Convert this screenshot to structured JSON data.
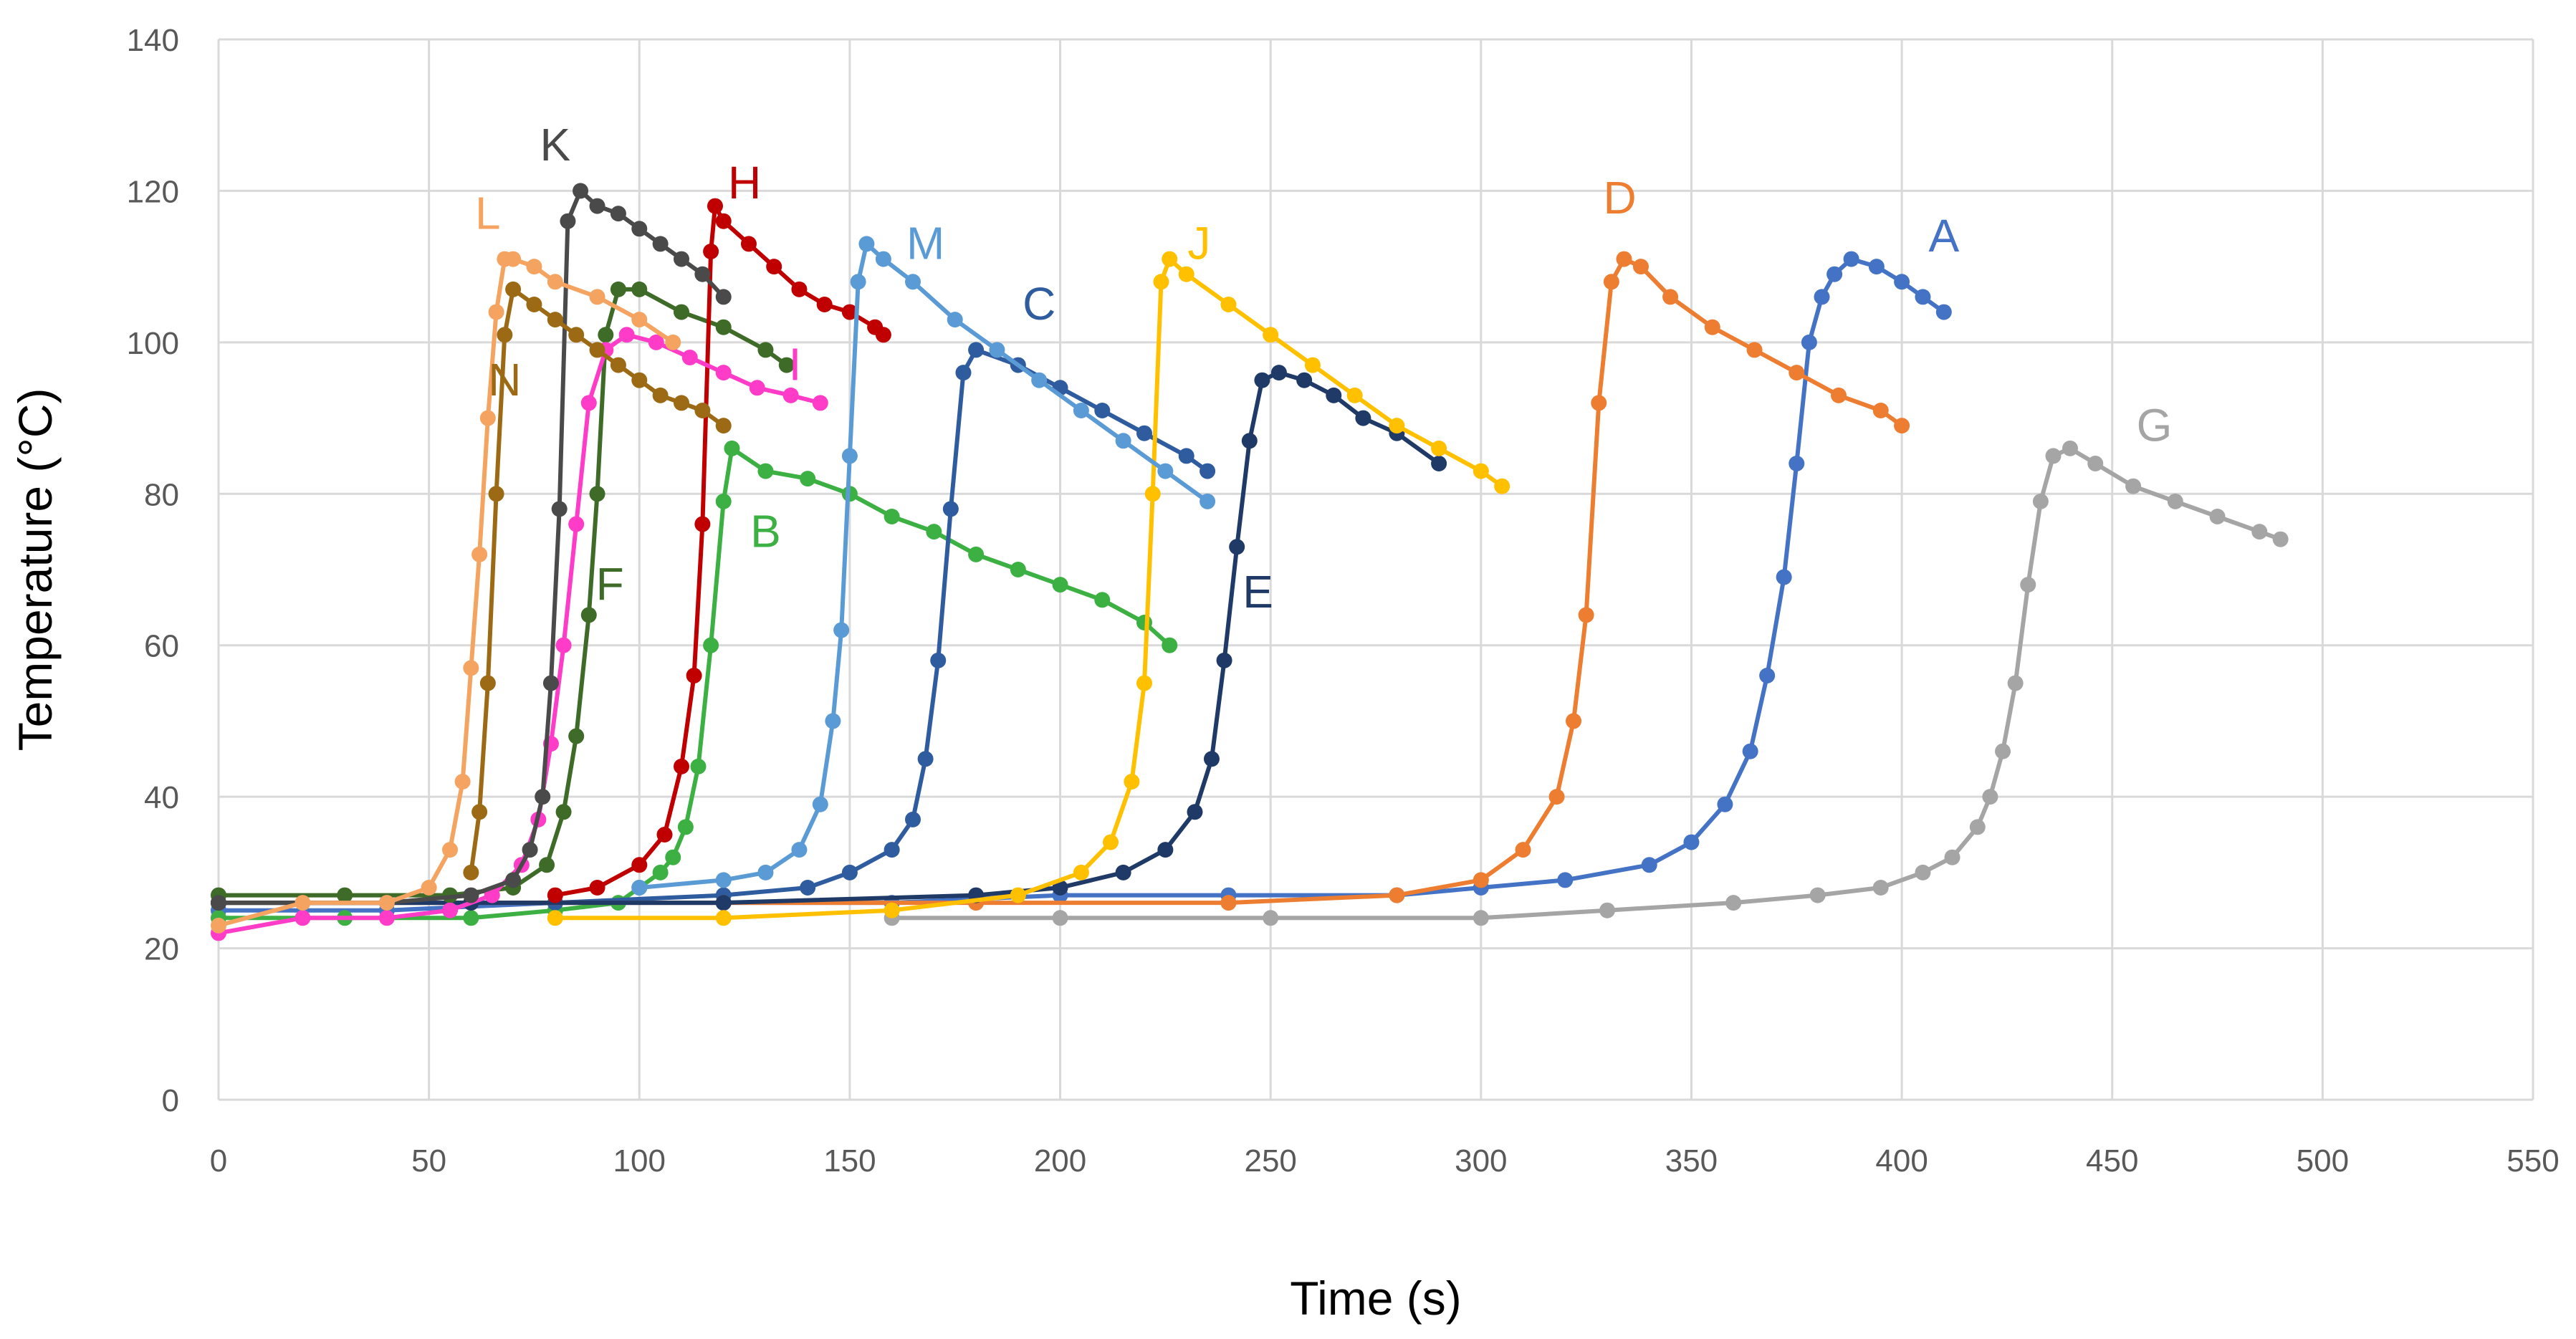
{
  "chart_data": {
    "type": "line",
    "title": "",
    "xlabel": "Time (s)",
    "ylabel": "Temperature (°C)",
    "xlim": [
      0,
      550
    ],
    "ylim": [
      0,
      140
    ],
    "xticks": [
      0,
      50,
      100,
      150,
      200,
      250,
      300,
      350,
      400,
      450,
      500,
      550
    ],
    "yticks": [
      0,
      20,
      40,
      60,
      80,
      100,
      120,
      140
    ],
    "grid": true,
    "legend": "none (series labeled directly on curves)",
    "series": [
      {
        "name": "A",
        "color": "#4472C4",
        "label_at": [
          410,
          112
        ],
        "x": [
          0,
          40,
          80,
          120,
          160,
          200,
          240,
          280,
          300,
          320,
          340,
          350,
          358,
          364,
          368,
          372,
          375,
          378,
          381,
          384,
          388,
          394,
          400,
          405,
          410
        ],
        "y": [
          25,
          25,
          26,
          26,
          26,
          27,
          27,
          27,
          28,
          29,
          31,
          34,
          39,
          46,
          56,
          69,
          84,
          100,
          106,
          109,
          111,
          110,
          108,
          106,
          104
        ]
      },
      {
        "name": "B",
        "color": "#3CB043",
        "label_at": [
          130,
          73
        ],
        "x": [
          0,
          30,
          60,
          80,
          95,
          100,
          105,
          108,
          111,
          114,
          117,
          120,
          122,
          130,
          140,
          150,
          160,
          170,
          180,
          190,
          200,
          210,
          220,
          226
        ],
        "y": [
          24,
          24,
          24,
          25,
          26,
          28,
          30,
          32,
          36,
          44,
          60,
          79,
          86,
          83,
          82,
          80,
          77,
          75,
          72,
          70,
          68,
          66,
          63,
          60
        ]
      },
      {
        "name": "C",
        "color": "#2E5C9E",
        "label_at": [
          195,
          103
        ],
        "x": [
          0,
          40,
          80,
          120,
          140,
          150,
          160,
          165,
          168,
          171,
          174,
          177,
          180,
          190,
          200,
          210,
          220,
          230,
          235
        ],
        "y": [
          26,
          26,
          26,
          27,
          28,
          30,
          33,
          37,
          45,
          58,
          78,
          96,
          99,
          97,
          94,
          91,
          88,
          85,
          83
        ]
      },
      {
        "name": "D",
        "color": "#ED7D31",
        "label_at": [
          333,
          117
        ],
        "x": [
          0,
          60,
          120,
          180,
          240,
          280,
          300,
          310,
          318,
          322,
          325,
          328,
          331,
          334,
          338,
          345,
          355,
          365,
          375,
          385,
          395,
          400
        ],
        "y": [
          26,
          26,
          26,
          26,
          26,
          27,
          29,
          33,
          40,
          50,
          64,
          92,
          108,
          111,
          110,
          106,
          102,
          99,
          96,
          93,
          91,
          89
        ]
      },
      {
        "name": "E",
        "color": "#1F3A66",
        "label_at": [
          247,
          65
        ],
        "x": [
          0,
          60,
          120,
          180,
          200,
          215,
          225,
          232,
          236,
          239,
          242,
          245,
          248,
          252,
          258,
          265,
          272,
          280,
          290
        ],
        "y": [
          26,
          26,
          26,
          27,
          28,
          30,
          33,
          38,
          45,
          58,
          73,
          87,
          95,
          96,
          95,
          93,
          90,
          88,
          84
        ]
      },
      {
        "name": "F",
        "color": "#3E6B27",
        "label_at": [
          93,
          66
        ],
        "x": [
          0,
          30,
          55,
          70,
          78,
          82,
          85,
          88,
          90,
          92,
          95,
          100,
          110,
          120,
          130,
          135
        ],
        "y": [
          27,
          27,
          27,
          28,
          31,
          38,
          48,
          64,
          80,
          101,
          107,
          107,
          104,
          102,
          99,
          97
        ]
      },
      {
        "name": "G",
        "color": "#A5A5A5",
        "label_at": [
          460,
          87
        ],
        "x": [
          160,
          200,
          250,
          300,
          330,
          360,
          380,
          395,
          405,
          412,
          418,
          421,
          424,
          427,
          430,
          433,
          436,
          440,
          446,
          455,
          465,
          475,
          485,
          490
        ],
        "y": [
          24,
          24,
          24,
          24,
          25,
          26,
          27,
          28,
          30,
          32,
          36,
          40,
          46,
          55,
          68,
          79,
          85,
          86,
          84,
          81,
          79,
          77,
          75,
          74
        ]
      },
      {
        "name": "H",
        "color": "#C00000",
        "label_at": [
          125,
          119
        ],
        "x": [
          80,
          90,
          100,
          106,
          110,
          113,
          115,
          117,
          118,
          120,
          126,
          132,
          138,
          144,
          150,
          156,
          158
        ],
        "y": [
          27,
          28,
          31,
          35,
          44,
          56,
          76,
          112,
          118,
          116,
          113,
          110,
          107,
          105,
          104,
          102,
          101
        ]
      },
      {
        "name": "I",
        "color": "#FF3CC8",
        "label_at": [
          137,
          95
        ],
        "x": [
          0,
          20,
          40,
          55,
          65,
          72,
          76,
          79,
          82,
          85,
          88,
          92,
          97,
          104,
          112,
          120,
          128,
          136,
          143
        ],
        "y": [
          22,
          24,
          24,
          25,
          27,
          31,
          37,
          47,
          60,
          76,
          92,
          99,
          101,
          100,
          98,
          96,
          94,
          93,
          92
        ]
      },
      {
        "name": "J",
        "color": "#FFC000",
        "label_at": [
          233,
          111
        ],
        "x": [
          80,
          120,
          160,
          190,
          205,
          212,
          217,
          220,
          222,
          224,
          226,
          230,
          240,
          250,
          260,
          270,
          280,
          290,
          300,
          305
        ],
        "y": [
          24,
          24,
          25,
          27,
          30,
          34,
          42,
          55,
          80,
          108,
          111,
          109,
          105,
          101,
          97,
          93,
          89,
          86,
          83,
          81
        ]
      },
      {
        "name": "K",
        "color": "#4A4A4A",
        "label_at": [
          80,
          124
        ],
        "x": [
          0,
          40,
          60,
          70,
          74,
          77,
          79,
          81,
          83,
          86,
          90,
          95,
          100,
          105,
          110,
          115,
          120
        ],
        "y": [
          26,
          26,
          27,
          29,
          33,
          40,
          55,
          78,
          116,
          120,
          118,
          117,
          115,
          113,
          111,
          109,
          106
        ]
      },
      {
        "name": "L",
        "color": "#F4A460",
        "label_at": [
          64,
          115
        ],
        "x": [
          0,
          20,
          40,
          50,
          55,
          58,
          60,
          62,
          64,
          66,
          68,
          70,
          75,
          80,
          90,
          100,
          108
        ],
        "y": [
          23,
          26,
          26,
          28,
          33,
          42,
          57,
          72,
          90,
          104,
          111,
          111,
          110,
          108,
          106,
          103,
          100
        ]
      },
      {
        "name": "M",
        "color": "#5B9BD5",
        "label_at": [
          168,
          111
        ],
        "x": [
          100,
          120,
          130,
          138,
          143,
          146,
          148,
          150,
          152,
          154,
          158,
          165,
          175,
          185,
          195,
          205,
          215,
          225,
          235
        ],
        "y": [
          28,
          29,
          30,
          33,
          39,
          50,
          62,
          85,
          108,
          113,
          111,
          108,
          103,
          99,
          95,
          91,
          87,
          83,
          79
        ]
      },
      {
        "name": "N",
        "color": "#9C6A14",
        "label_at": [
          68,
          93
        ],
        "x": [
          60,
          62,
          64,
          66,
          68,
          70,
          75,
          80,
          85,
          90,
          95,
          100,
          105,
          110,
          115,
          120
        ],
        "y": [
          30,
          38,
          55,
          80,
          101,
          107,
          105,
          103,
          101,
          99,
          97,
          95,
          93,
          92,
          91,
          89
        ]
      }
    ]
  }
}
